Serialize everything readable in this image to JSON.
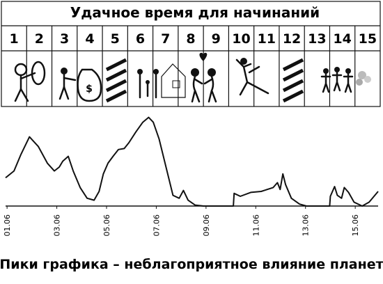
{
  "header_title": "Удачное время для начинаний",
  "days": [
    "1",
    "2",
    "3",
    "4",
    "5",
    "6",
    "7",
    "8",
    "9",
    "10",
    "11",
    "12",
    "13",
    "14",
    "15"
  ],
  "chart_data": {
    "type": "line",
    "caption": "Пики графика – неблагоприятное влияние планет",
    "x": [
      0.94,
      1.28,
      1.56,
      1.9,
      2.26,
      2.62,
      2.9,
      3.1,
      3.24,
      3.46,
      3.66,
      3.94,
      4.22,
      4.5,
      4.7,
      4.87,
      5.06,
      5.26,
      5.48,
      5.71,
      5.9,
      6.18,
      6.46,
      6.69,
      6.88,
      7.11,
      7.39,
      7.67,
      7.92,
      8.09,
      8.28,
      8.56,
      8.9,
      10.1,
      10.13,
      10.38,
      10.8,
      11.22,
      11.7,
      11.87,
      11.98,
      12.09,
      12.2,
      12.43,
      12.76,
      13.04,
      13.97,
      14.0,
      14.17,
      14.28,
      14.45,
      14.56,
      14.73,
      14.95,
      15.28,
      15.56,
      15.92
    ],
    "series": [
      {
        "color": "#111111",
        "values": [
          29,
          36,
          53,
          71,
          61,
          44,
          36,
          40,
          46,
          51,
          36,
          19,
          8,
          6,
          15,
          33,
          44,
          51,
          58,
          59,
          65,
          76,
          86,
          91,
          86,
          69,
          40,
          11,
          8,
          16,
          6,
          1,
          0,
          0,
          13,
          10,
          14,
          15,
          19,
          24,
          17,
          33,
          22,
          8,
          2,
          0,
          0,
          10,
          20,
          11,
          8,
          19,
          14,
          4,
          0,
          4,
          15
        ]
      }
    ],
    "xlim": [
      0.94,
      15.92
    ],
    "ylim": [
      0,
      100
    ],
    "xticks": [
      {
        "value": 1,
        "label": "01.06"
      },
      {
        "value": 3,
        "label": "03.06"
      },
      {
        "value": 5,
        "label": "05.06"
      },
      {
        "value": 7,
        "label": "07.06"
      },
      {
        "value": 9,
        "label": "09.06"
      },
      {
        "value": 11,
        "label": "11.06"
      },
      {
        "value": 13,
        "label": "13.06"
      },
      {
        "value": 15,
        "label": "15.06"
      }
    ]
  }
}
